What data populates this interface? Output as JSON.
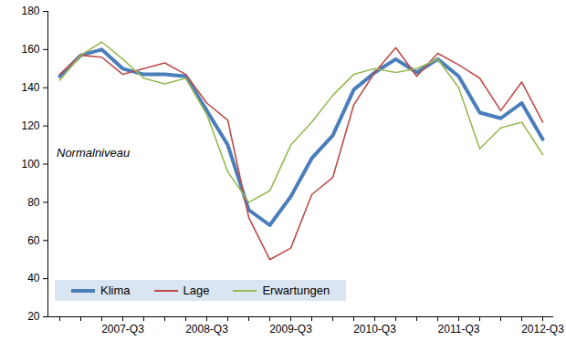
{
  "chart_data": {
    "type": "line",
    "categories": [
      null,
      null,
      null,
      "2007-Q3",
      null,
      null,
      null,
      "2008-Q3",
      null,
      null,
      null,
      "2009-Q3",
      null,
      null,
      null,
      "2010-Q3",
      null,
      null,
      null,
      "2011-Q3",
      null,
      null,
      null,
      "2012-Q3"
    ],
    "series": [
      {
        "name": "Klima",
        "color": "#4a7ebb",
        "values": [
          146,
          157,
          160,
          150,
          147,
          147,
          146,
          128,
          110,
          76,
          68,
          83,
          103,
          115,
          139,
          148,
          155,
          148,
          155,
          146,
          127,
          124,
          132,
          113
        ]
      },
      {
        "name": "Lage",
        "color": "#be4b48",
        "values": [
          147,
          157,
          156,
          147,
          150,
          153,
          147,
          132,
          123,
          72,
          50,
          56,
          84,
          93,
          131,
          148,
          161,
          146,
          158,
          152,
          145,
          128,
          143,
          122
        ]
      },
      {
        "name": "Erwartungen",
        "color": "#98b954",
        "values": [
          144,
          157,
          164,
          155,
          145,
          142,
          145,
          126,
          96,
          80,
          86,
          110,
          122,
          136,
          147,
          150,
          148,
          150,
          155,
          140,
          108,
          119,
          122,
          105
        ]
      }
    ],
    "ylim": [
      20,
      180
    ],
    "yticks": [
      20,
      40,
      60,
      80,
      100,
      120,
      140,
      160,
      180
    ],
    "grid": false,
    "legend": "bottom-left",
    "annotations": [
      {
        "text": "Normalniveau"
      }
    ]
  }
}
